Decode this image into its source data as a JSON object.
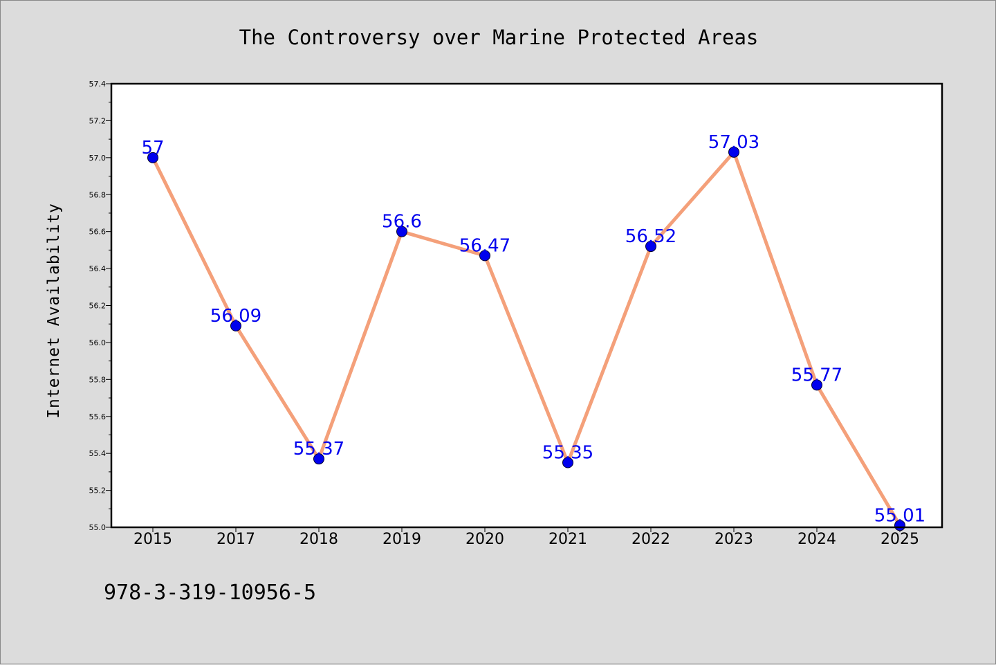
{
  "chart_data": {
    "type": "line",
    "title": "The Controversy over Marine Protected Areas",
    "xlabel": "",
    "ylabel": "Internet Availability",
    "categories": [
      "2015",
      "2017",
      "2018",
      "2019",
      "2020",
      "2021",
      "2022",
      "2023",
      "2024",
      "2025"
    ],
    "series": [
      {
        "values": [
          57,
          56.09,
          55.37,
          56.6,
          56.47,
          55.35,
          56.52,
          57.03,
          55.77,
          55.01
        ],
        "data_labels": [
          "57",
          "56.09",
          "55.37",
          "56.6",
          "56.47",
          "55.35",
          "56.52",
          "57.03",
          "55.77",
          "55.01"
        ]
      }
    ],
    "ylim": [
      55.0,
      57.4
    ],
    "yticks": [
      "55.0",
      "55.2",
      "55.4",
      "55.6",
      "55.8",
      "56.0",
      "56.2",
      "56.4",
      "56.6",
      "56.8",
      "57.0",
      "57.2",
      "57.4"
    ],
    "grid": false,
    "colors": {
      "line": "#f4a07a",
      "marker": "#0000ee",
      "data_label": "#0000ee",
      "background": "#dcdcdc",
      "plot_background": "#ffffff"
    }
  },
  "footer": {
    "text": "978-3-319-10956-5"
  }
}
